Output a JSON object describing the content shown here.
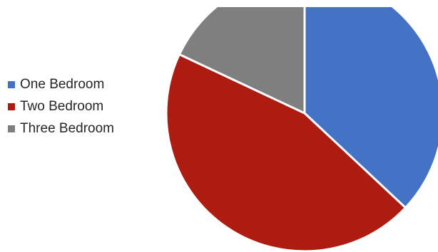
{
  "chart_data": {
    "type": "pie",
    "title": "",
    "start_angle_deg": 0,
    "direction": "clockwise",
    "legend_placement": "left",
    "slices": [
      {
        "label": "One Bedroom",
        "value": 37,
        "color": "#4472C4"
      },
      {
        "label": "Two Bedroom",
        "value": 45,
        "color": "#AE1B10"
      },
      {
        "label": "Three Bedroom",
        "value": 18,
        "color": "#7F7F7F"
      }
    ]
  }
}
